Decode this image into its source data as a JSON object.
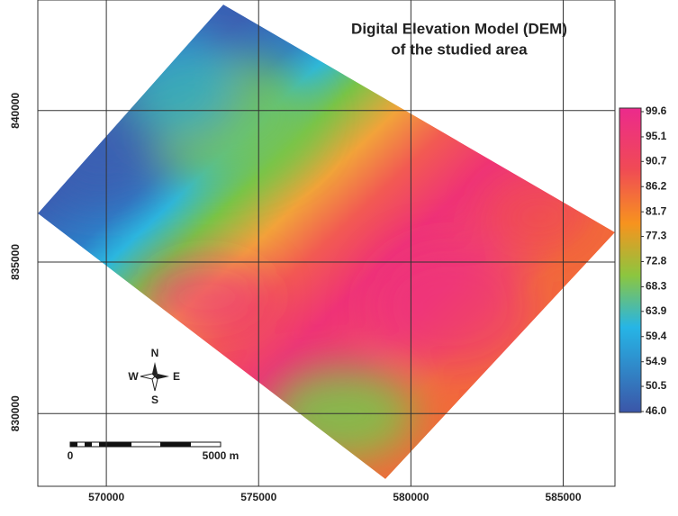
{
  "map": {
    "title": [
      "Digital Elevation Model (DEM)",
      "of the studied area"
    ],
    "xlim": [
      567750,
      586700
    ],
    "ylim": [
      827600,
      843650
    ],
    "xticks": [
      570000,
      575000,
      580000,
      585000
    ],
    "yticks": [
      830000,
      835000,
      840000
    ],
    "colorbar": {
      "lim": [
        46,
        99.6
      ],
      "ticks": [
        99.6,
        95.1,
        90.7,
        86.2,
        81.7,
        77.3,
        72.8,
        68.3,
        63.9,
        59.4,
        54.9,
        50.5,
        {
          "value": 46,
          "label": "46.0"
        }
      ]
    },
    "compass": {
      "north": "N",
      "south": "S",
      "west": "W",
      "east": "E"
    },
    "scale_bar": {
      "start": "0",
      "end": "5000 m"
    }
  }
}
